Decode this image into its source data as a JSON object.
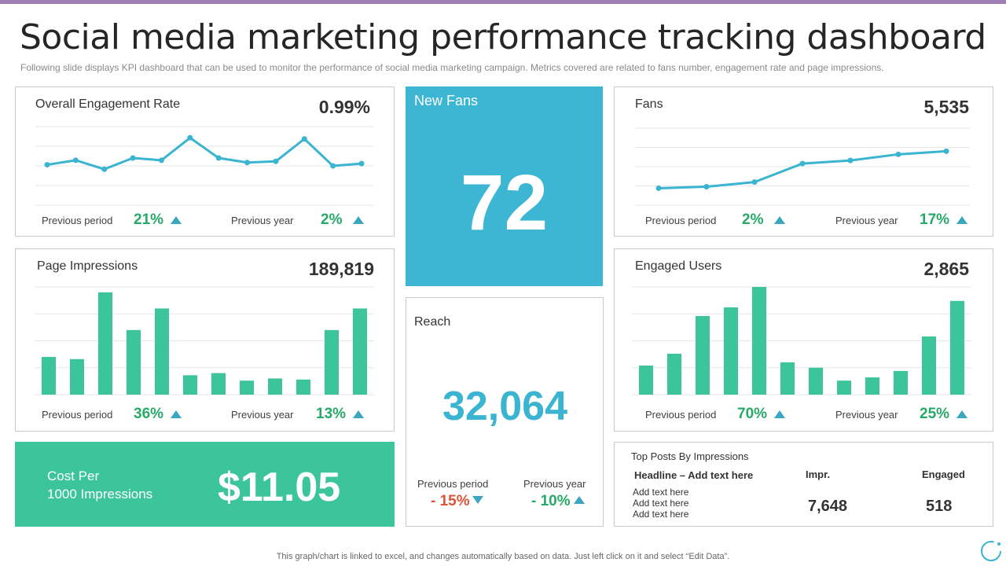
{
  "page": {
    "title": "Social media marketing performance tracking dashboard",
    "subtitle": "Following slide displays KPI dashboard that can be used to monitor the performance  of social media marketing campaign. Metrics covered  are related to fans number, engagement rate and page impressions.",
    "footer": "This graph/chart is linked to excel,  and changes automatically based on data. Just left click on it and select “Edit Data”."
  },
  "colors": {
    "line": "#3ab4d0",
    "bar": "#3cc59b",
    "positive": "#27a968",
    "negative": "#e0533a",
    "new_fans_bg": "#3cb6d3",
    "cost_bg": "#3cc59b"
  },
  "engagement": {
    "title": "Overall  Engagement Rate",
    "value": "0.99%",
    "prev_period_label": "Previous  period",
    "prev_period_pct": "21%",
    "prev_year_label": "Previous  year",
    "prev_year_pct": "2%"
  },
  "fans": {
    "title": "Fans",
    "value": "5,535",
    "prev_period_label": "Previous  period",
    "prev_period_pct": "2%",
    "prev_year_label": "Previous  year",
    "prev_year_pct": "17%"
  },
  "impressions": {
    "title": "Page Impressions",
    "value": "189,819",
    "prev_period_label": "Previous  period",
    "prev_period_pct": "36%",
    "prev_year_label": "Previous  year",
    "prev_year_pct": "13%"
  },
  "engaged_users": {
    "title": "Engaged Users",
    "value": "2,865",
    "prev_period_label": "Previous  period",
    "prev_period_pct": "70%",
    "prev_year_label": "Previous  year",
    "prev_year_pct": "25%"
  },
  "new_fans": {
    "title": "New Fans",
    "value": "72"
  },
  "reach": {
    "title": "Reach",
    "value": "32,064",
    "prev_period_label": "Previous  period",
    "prev_period_pct": "- 15%",
    "prev_year_label": "Previous  year",
    "prev_year_pct": "- 10%"
  },
  "cost": {
    "label_line1": "Cost Per",
    "label_line2": "1000 Impressions",
    "value": "$11.05"
  },
  "top_posts": {
    "title": "Top Posts By Impressions",
    "col_headline": "Headline – Add text here",
    "col_impr": "Impr.",
    "col_engaged": "Engaged",
    "rows": [
      "Add text here",
      "Add text here",
      "Add text here"
    ],
    "impr_value": "7,648",
    "engaged_value": "518"
  },
  "chart_data": [
    {
      "id": "engagement",
      "type": "line",
      "title": "Overall  Engagement Rate",
      "values": [
        36,
        40,
        32,
        42,
        40,
        60,
        42,
        38,
        39,
        59,
        35,
        37
      ],
      "ylim": [
        0,
        70
      ],
      "grid": true
    },
    {
      "id": "fans",
      "type": "line",
      "title": "Fans",
      "values": [
        11,
        12,
        15,
        27,
        29,
        33,
        35
      ],
      "ylim": [
        0,
        50
      ],
      "grid": true
    },
    {
      "id": "impressions",
      "type": "bar",
      "title": "Page Impressions",
      "values": [
        35,
        33,
        95,
        60,
        80,
        18,
        20,
        13,
        15,
        14,
        60,
        80
      ],
      "ylim": [
        0,
        100
      ],
      "grid": true
    },
    {
      "id": "engaged_users",
      "type": "bar",
      "title": "Engaged Users",
      "values": [
        27,
        38,
        73,
        81,
        100,
        30,
        25,
        13,
        16,
        22,
        54,
        87
      ],
      "ylim": [
        0,
        100
      ],
      "grid": true
    }
  ]
}
